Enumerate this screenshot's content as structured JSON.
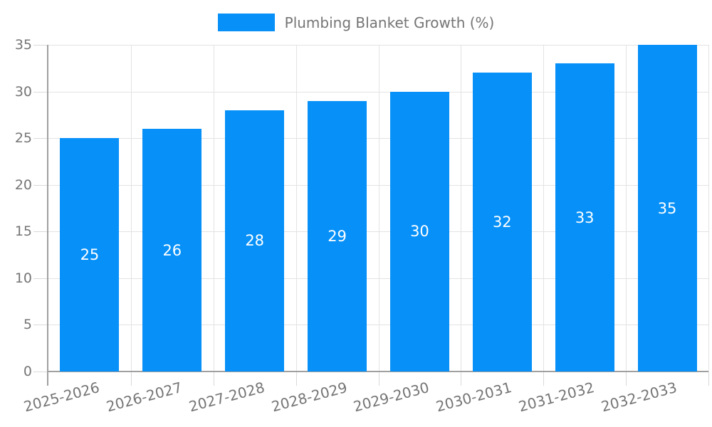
{
  "legend": {
    "label": "Plumbing Blanket Growth (%)"
  },
  "colors": {
    "bar": "#0690f8",
    "grid": "#e3e3e3",
    "tick": "#d9d9d9",
    "axis": "#a0a0a0",
    "label": "#757575",
    "bar_label": "#ffffff",
    "background": "#ffffff"
  },
  "chart_data": {
    "type": "bar",
    "title": "Plumbing Blanket Growth (%)",
    "categories": [
      "2025-2026",
      "2026-2027",
      "2027-2028",
      "2028-2029",
      "2029-2030",
      "2030-2031",
      "2031-2032",
      "2032-2033"
    ],
    "values": [
      25,
      26,
      28,
      29,
      30,
      32,
      33,
      35
    ],
    "xlabel": "",
    "ylabel": "",
    "ylim": [
      0,
      35
    ],
    "yticks": [
      0,
      5,
      10,
      15,
      20,
      25,
      30,
      35
    ],
    "grid": true,
    "show_values_on_bars": true,
    "legend_position": "top-center",
    "x_label_rotation_deg": -15
  }
}
